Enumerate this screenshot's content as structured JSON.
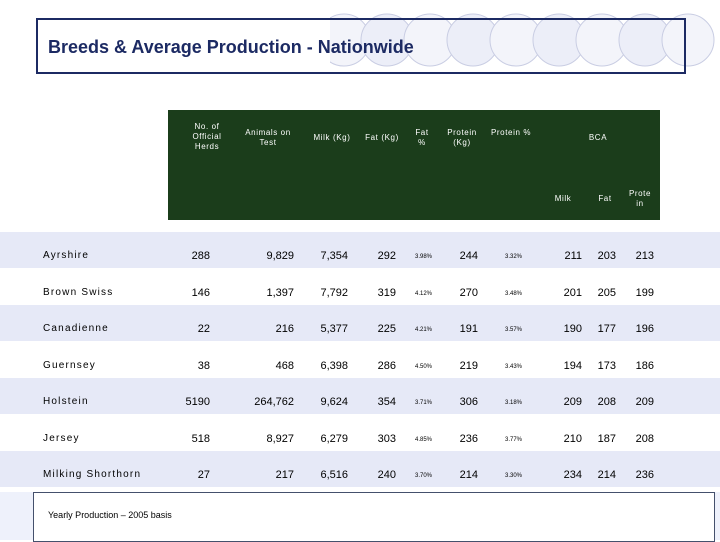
{
  "title": "Breeds & Average Production - Nationwide",
  "columns": {
    "herds": "No. of Official Herds",
    "animals": "Animals on Test",
    "milk": "Milk (Kg)",
    "fat": "Fat (Kg)",
    "fat_pct": "Fat %",
    "protein": "Protein (Kg)",
    "protein_pct": "Protein %",
    "bca": "BCA",
    "bca_milk": "Milk",
    "bca_fat": "Fat",
    "bca_protein": "Prote in"
  },
  "rows": [
    {
      "breed": "Ayrshire",
      "herds": "288",
      "animals": "9,829",
      "milk": "7,354",
      "fat": "292",
      "fat_pct": "3.98%",
      "protein": "244",
      "protein_pct": "3.32%",
      "bca_milk": "211",
      "bca_fat": "203",
      "bca_protein": "213"
    },
    {
      "breed": "Brown Swiss",
      "herds": "146",
      "animals": "1,397",
      "milk": "7,792",
      "fat": "319",
      "fat_pct": "4.12%",
      "protein": "270",
      "protein_pct": "3.48%",
      "bca_milk": "201",
      "bca_fat": "205",
      "bca_protein": "199"
    },
    {
      "breed": "Canadienne",
      "herds": "22",
      "animals": "216",
      "milk": "5,377",
      "fat": "225",
      "fat_pct": "4.21%",
      "protein": "191",
      "protein_pct": "3.57%",
      "bca_milk": "190",
      "bca_fat": "177",
      "bca_protein": "196"
    },
    {
      "breed": "Guernsey",
      "herds": "38",
      "animals": "468",
      "milk": "6,398",
      "fat": "286",
      "fat_pct": "4.50%",
      "protein": "219",
      "protein_pct": "3.43%",
      "bca_milk": "194",
      "bca_fat": "173",
      "bca_protein": "186"
    },
    {
      "breed": "Holstein",
      "herds": "5190",
      "animals": "264,762",
      "milk": "9,624",
      "fat": "354",
      "fat_pct": "3.71%",
      "protein": "306",
      "protein_pct": "3.18%",
      "bca_milk": "209",
      "bca_fat": "208",
      "bca_protein": "209"
    },
    {
      "breed": "Jersey",
      "herds": "518",
      "animals": "8,927",
      "milk": "6,279",
      "fat": "303",
      "fat_pct": "4.85%",
      "protein": "236",
      "protein_pct": "3.77%",
      "bca_milk": "210",
      "bca_fat": "187",
      "bca_protein": "208"
    },
    {
      "breed": "Milking Shorthorn",
      "herds": "27",
      "animals": "217",
      "milk": "6,516",
      "fat": "240",
      "fat_pct": "3.70%",
      "protein": "214",
      "protein_pct": "3.30%",
      "bca_milk": "234",
      "bca_fat": "214",
      "bca_protein": "236"
    }
  ],
  "footnote": "Yearly Production – 2005 basis",
  "colors": {
    "header_bg": "#1b3d1b",
    "title": "#1c2a63",
    "row_stripe": "#e6e9f7"
  }
}
